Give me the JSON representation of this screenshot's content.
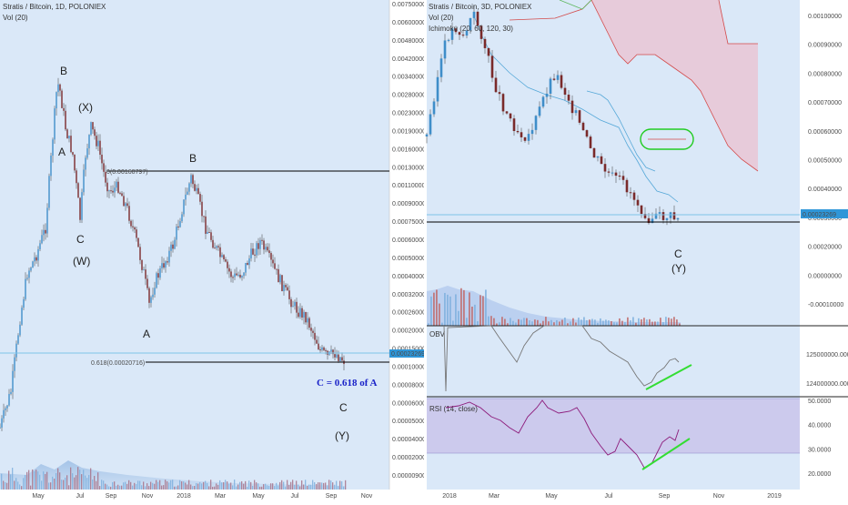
{
  "left_panel": {
    "header": {
      "line1": "Stratis / Bitcoin, 1D, POLONIEX",
      "line2": "Vol (20)"
    },
    "price_axis": [
      "0.00750000",
      "0.00600000",
      "0.00480000",
      "0.00420000",
      "0.00340000",
      "0.00280000",
      "0.00230000",
      "0.00190000",
      "0.00160000",
      "0.00130000",
      "0.00110000",
      "0.00090000",
      "0.00075000",
      "0.00060000",
      "0.00050000",
      "0.00040000",
      "0.00032000",
      "0.00026000",
      "0.00020000",
      "0.00015000",
      "0.00010000",
      "0.00008000",
      "0.00006000",
      "0.00005000",
      "0.00004000",
      "0.00002000",
      "0.00000900"
    ],
    "time_axis": [
      "May",
      "Jul",
      "Sep",
      "Nov",
      "2018",
      "Mar",
      "May",
      "Jul",
      "Sep",
      "Nov"
    ],
    "current_price_tag": "0.00023269",
    "level_b": "0(0.00160797)",
    "level_c": "0.618(0.00020716)",
    "waves": {
      "b_top": "B",
      "a_top": "A",
      "x": "(X)",
      "c_left": "C",
      "w": "(W)",
      "a_mid": "A",
      "b_mid": "B",
      "c_right": "C",
      "y": "(Y)"
    },
    "ratio_note": "C = 0.618 of A"
  },
  "right_panel": {
    "header": {
      "line1": "Stratis / Bitcoin, 3D, POLONIEX",
      "line2": "Vol (20)",
      "line3": "Ichimoku (20, 60, 120, 30)"
    },
    "price_axis": [
      "0.00100000",
      "0.00090000",
      "0.00080000",
      "0.00070000",
      "0.00060000",
      "0.00050000",
      "0.00040000",
      "0.00030000",
      "0.00020000",
      "0.00000000",
      "-0.00010000"
    ],
    "current_price_tag": "0.00023269",
    "obv": {
      "label": "OBV",
      "axis": [
        "125000000.0000",
        "124000000.0000"
      ]
    },
    "rsi": {
      "label": "RSI (14, close)",
      "axis": [
        "50.0000",
        "40.0000",
        "30.0000",
        "20.0000"
      ]
    },
    "time_axis": [
      "2018",
      "Mar",
      "May",
      "Jul",
      "Sep",
      "Nov",
      "2019"
    ],
    "waves": {
      "c": "C",
      "y": "(Y)"
    }
  },
  "chart_data": [
    {
      "type": "line",
      "title": "Stratis / Bitcoin, 1D, POLONIEX",
      "x": [
        "May",
        "Jul",
        "Sep",
        "Nov",
        "2018",
        "Mar",
        "May",
        "Jul",
        "Sep"
      ],
      "series": [
        {
          "values": [
            0.0042,
            0.0023,
            0.0018,
            0.0004,
            0.0016,
            0.00085,
            0.0009,
            0.0004,
            0.00021
          ]
        }
      ]
    },
    {
      "type": "line",
      "title": "Stratis / Bitcoin, 3D, POLONIEX",
      "x": [
        "2018",
        "Mar",
        "May",
        "Jul",
        "Sep"
      ],
      "series": [
        {
          "values": [
            0.00095,
            0.00055,
            0.00085,
            0.00045,
            0.00023
          ]
        }
      ]
    }
  ]
}
